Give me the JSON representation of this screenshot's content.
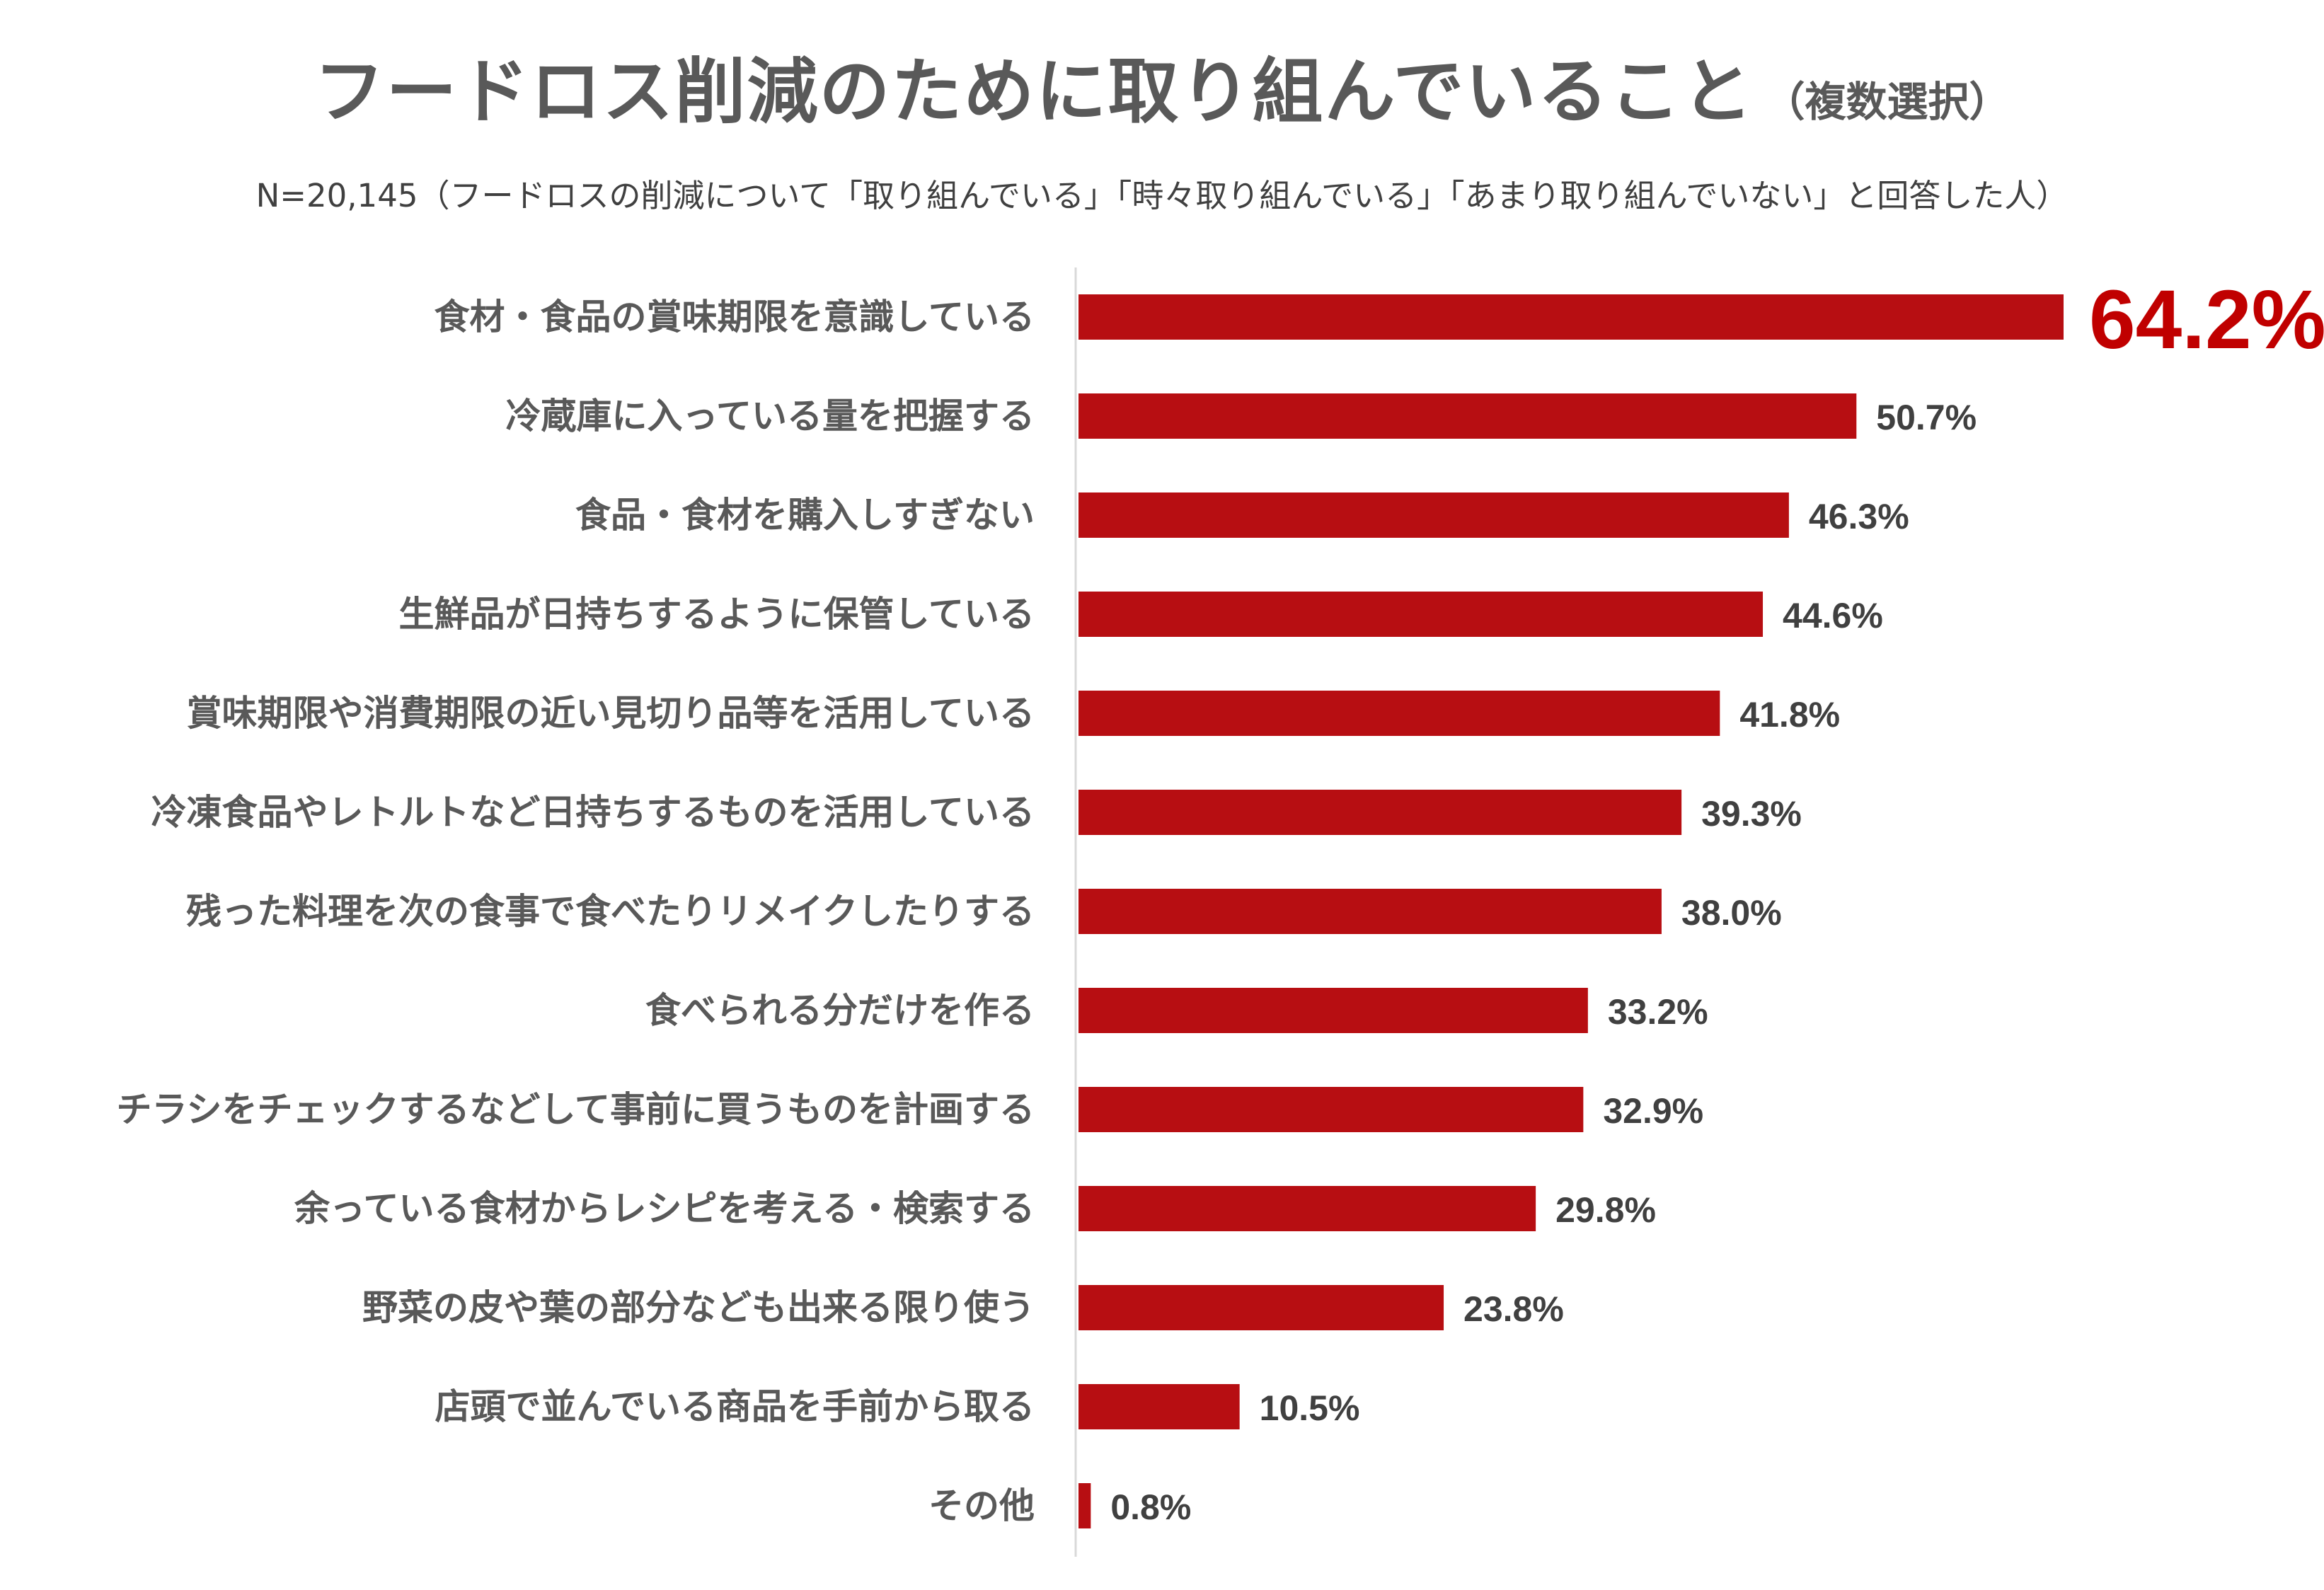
{
  "title": {
    "main": "フードロス削減のために取り組んでいること",
    "note": "（複数選択）"
  },
  "subtitle": "N=20,145（フードロスの削減について「取り組んでいる」「時々取り組んでいる」「あまり取り組んでいない」と回答した人）",
  "colors": {
    "bar": "#b70e12",
    "highlight": "#c00000",
    "axis": "#d9d9d9",
    "text": "#595959"
  },
  "chart_data": {
    "type": "bar",
    "orientation": "horizontal",
    "title": "フードロス削減のために取り組んでいること",
    "unit": "%",
    "xlim": [
      0,
      64.2
    ],
    "grid": false,
    "highlight_index": 0,
    "categories": [
      "食材・食品の賞味期限を意識している",
      "冷蔵庫に入っている量を把握する",
      "食品・食材を購入しすぎない",
      "生鮮品が日持ちするように保管している",
      "賞味期限や消費期限の近い見切り品等を活用している",
      "冷凍食品やレトルトなど日持ちするものを活用している",
      "残った料理を次の食事で食べたりリメイクしたりする",
      "食べられる分だけを作る",
      "チラシをチェックするなどして事前に買うものを計画する",
      "余っている食材からレシピを考える・検索する",
      "野菜の皮や葉の部分なども出来る限り使う",
      "店頭で並んでいる商品を手前から取る",
      "その他"
    ],
    "values": [
      64.2,
      50.7,
      46.3,
      44.6,
      41.8,
      39.3,
      38.0,
      33.2,
      32.9,
      29.8,
      23.8,
      10.5,
      0.8
    ],
    "value_labels": [
      "64.2%",
      "50.7%",
      "46.3%",
      "44.6%",
      "41.8%",
      "39.3%",
      "38.0%",
      "33.2%",
      "32.9%",
      "29.8%",
      "23.8%",
      "10.5%",
      "0.8%"
    ]
  }
}
